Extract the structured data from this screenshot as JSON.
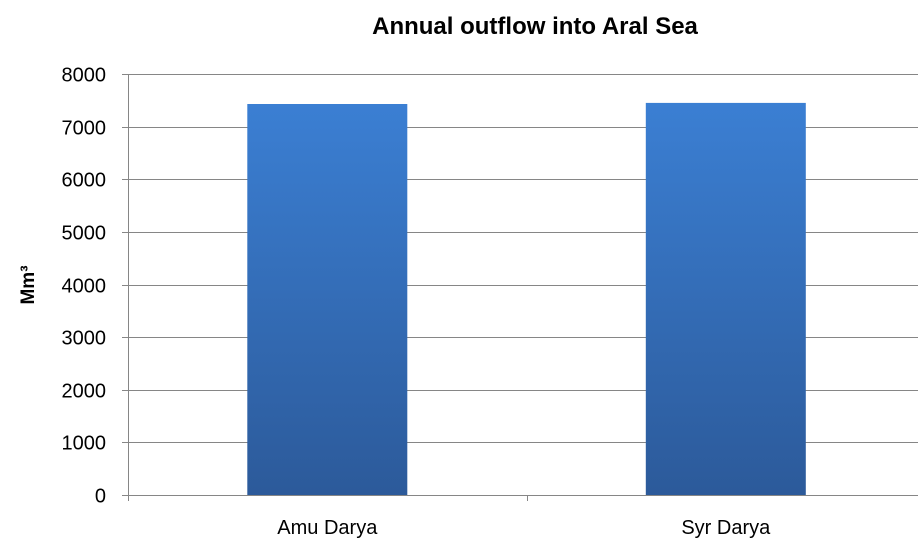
{
  "chart_data": {
    "type": "bar",
    "title": "Annual outflow into Aral Sea",
    "xlabel": "",
    "ylabel": "Mm³",
    "categories": [
      "Amu Darya",
      "Syr Darya"
    ],
    "values": [
      7430,
      7450
    ],
    "ylim": [
      0,
      8000
    ],
    "yticks": [
      0,
      1000,
      2000,
      3000,
      4000,
      5000,
      6000,
      7000,
      8000
    ],
    "grid": true,
    "legend": "none",
    "colors": {
      "bar_top": "#3b7fd3",
      "bar_bottom": "#2c5a9a"
    }
  }
}
